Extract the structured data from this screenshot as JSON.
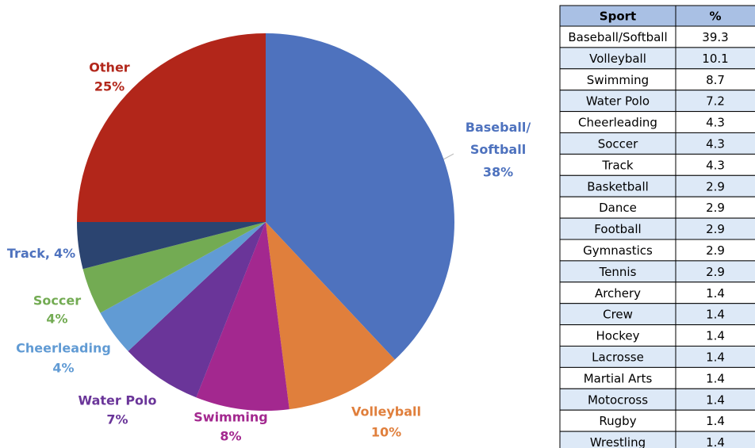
{
  "chart_data": {
    "type": "pie",
    "categories": [
      "Baseball/Softball",
      "Volleyball",
      "Swimming",
      "Water Polo",
      "Cheerleading",
      "Soccer",
      "Track,",
      "Other"
    ],
    "values": [
      38,
      10,
      8,
      7,
      4,
      4,
      4,
      25
    ],
    "value_labels": [
      "38%",
      "10%",
      "8%",
      "7%",
      "4%",
      "4%",
      "4%",
      "25%"
    ],
    "colors": [
      "#4e72be",
      "#e07f3c",
      "#a3288f",
      "#6a3599",
      "#619bd4",
      "#73ab53",
      "#2b4470",
      "#b2261a"
    ]
  },
  "table": {
    "header": [
      "Sport",
      "%"
    ],
    "rows": [
      [
        "Baseball/Softball",
        "39.3"
      ],
      [
        "Volleyball",
        "10.1"
      ],
      [
        "Swimming",
        "8.7"
      ],
      [
        "Water Polo",
        "7.2"
      ],
      [
        "Cheerleading",
        "4.3"
      ],
      [
        "Soccer",
        "4.3"
      ],
      [
        "Track",
        "4.3"
      ],
      [
        "Basketball",
        "2.9"
      ],
      [
        "Dance",
        "2.9"
      ],
      [
        "Football",
        "2.9"
      ],
      [
        "Gymnastics",
        "2.9"
      ],
      [
        "Tennis",
        "2.9"
      ],
      [
        "Archery",
        "1.4"
      ],
      [
        "Crew",
        "1.4"
      ],
      [
        "Hockey",
        "1.4"
      ],
      [
        "Lacrosse",
        "1.4"
      ],
      [
        "Martial Arts",
        "1.4"
      ],
      [
        "Motocross",
        "1.4"
      ],
      [
        "Rugby",
        "1.4"
      ],
      [
        "Wrestling",
        "1.4"
      ]
    ]
  }
}
